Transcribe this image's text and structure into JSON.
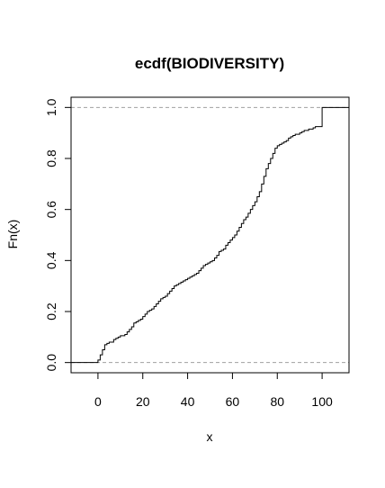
{
  "chart_data": {
    "type": "line",
    "subtype": "step",
    "title": "ecdf(BIODIVERSITY)",
    "xlabel": "x",
    "ylabel": "Fn(x)",
    "xlim": [
      -12,
      112
    ],
    "ylim": [
      -0.04,
      1.04
    ],
    "x_ticks": [
      0,
      20,
      40,
      60,
      80,
      100
    ],
    "y_ticks": [
      0.0,
      0.2,
      0.4,
      0.6,
      0.8,
      1.0
    ],
    "x_tick_labels": [
      "0",
      "20",
      "40",
      "60",
      "80",
      "100"
    ],
    "y_tick_labels": [
      "0.0",
      "0.2",
      "0.4",
      "0.6",
      "0.8",
      "1.0"
    ],
    "reference_lines": [
      0,
      1
    ],
    "grid": false,
    "colors": {
      "line": "#000000",
      "reference": "#a0a0a0",
      "frame": "#000000"
    },
    "x": [
      0,
      1,
      2,
      3,
      4,
      5,
      7,
      8,
      9,
      10,
      12,
      13,
      14,
      15,
      16,
      17,
      18,
      19,
      20,
      21,
      22,
      23,
      24,
      25,
      26,
      27,
      28,
      29,
      30,
      31,
      32,
      33,
      34,
      35,
      36,
      37,
      38,
      39,
      40,
      41,
      42,
      43,
      44,
      45,
      46,
      47,
      48,
      49,
      50,
      51,
      52,
      53,
      54,
      55,
      56,
      57,
      58,
      59,
      60,
      61,
      62,
      63,
      64,
      65,
      66,
      67,
      68,
      69,
      70,
      71,
      72,
      73,
      74,
      75,
      76,
      77,
      78,
      79,
      80,
      81,
      82,
      83,
      84,
      85,
      86,
      87,
      88,
      90,
      91,
      92,
      94,
      96,
      97,
      100
    ],
    "y": [
      0.01,
      0.03,
      0.05,
      0.07,
      0.075,
      0.08,
      0.09,
      0.095,
      0.1,
      0.105,
      0.11,
      0.12,
      0.13,
      0.14,
      0.155,
      0.16,
      0.165,
      0.17,
      0.18,
      0.19,
      0.2,
      0.205,
      0.21,
      0.22,
      0.23,
      0.24,
      0.25,
      0.255,
      0.26,
      0.27,
      0.28,
      0.29,
      0.3,
      0.305,
      0.31,
      0.315,
      0.32,
      0.325,
      0.33,
      0.335,
      0.34,
      0.345,
      0.35,
      0.36,
      0.37,
      0.38,
      0.385,
      0.39,
      0.395,
      0.4,
      0.41,
      0.42,
      0.435,
      0.44,
      0.445,
      0.46,
      0.47,
      0.48,
      0.49,
      0.5,
      0.515,
      0.53,
      0.545,
      0.56,
      0.57,
      0.585,
      0.6,
      0.615,
      0.63,
      0.65,
      0.67,
      0.7,
      0.73,
      0.76,
      0.78,
      0.8,
      0.82,
      0.84,
      0.85,
      0.855,
      0.86,
      0.865,
      0.87,
      0.88,
      0.885,
      0.89,
      0.895,
      0.9,
      0.905,
      0.91,
      0.915,
      0.92,
      0.925,
      1.0
    ]
  }
}
